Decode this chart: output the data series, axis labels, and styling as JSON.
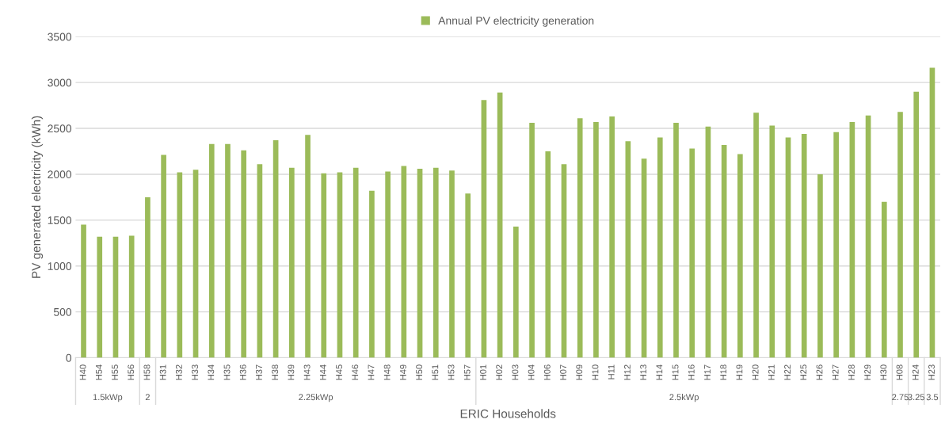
{
  "chart_data": {
    "type": "bar",
    "xlabel": "ERIC Households",
    "ylabel": "PV generated electricity (kWh)",
    "categories": [
      "H40",
      "H54",
      "H55",
      "H56",
      "H58",
      "H31",
      "H32",
      "H33",
      "H34",
      "H35",
      "H36",
      "H37",
      "H38",
      "H39",
      "H43",
      "H44",
      "H45",
      "H46",
      "H47",
      "H48",
      "H49",
      "H50",
      "H51",
      "H53",
      "H57",
      "H01",
      "H02",
      "H03",
      "H04",
      "H06",
      "H07",
      "H09",
      "H10",
      "H11",
      "H12",
      "H13",
      "H14",
      "H15",
      "H16",
      "H17",
      "H18",
      "H19",
      "H20",
      "H21",
      "H22",
      "H25",
      "H26",
      "H27",
      "H28",
      "H29",
      "H30",
      "H08",
      "H24",
      "H23"
    ],
    "series": [
      {
        "name": "Annual PV electricity generation",
        "color": "#9bbb59",
        "values": [
          1450,
          1320,
          1320,
          1330,
          1750,
          2210,
          2020,
          2050,
          2330,
          2330,
          2260,
          2110,
          2370,
          2070,
          2430,
          2010,
          2020,
          2070,
          1820,
          2030,
          2090,
          2060,
          2070,
          2040,
          1790,
          2810,
          2890,
          1430,
          2560,
          2250,
          2110,
          2610,
          2570,
          2630,
          2360,
          2170,
          2400,
          2560,
          2280,
          2520,
          2320,
          2220,
          2670,
          2530,
          2400,
          2440,
          2000,
          2460,
          2570,
          2640,
          1700,
          2680,
          2900,
          3160
        ]
      }
    ],
    "ylim": [
      0,
      3500
    ],
    "yticks": [
      0,
      500,
      1000,
      1500,
      2000,
      2500,
      3000,
      3500
    ],
    "grid": "y",
    "legend": "top",
    "annotations": [
      "1.5kWp",
      "2",
      "2.25kWp",
      "2.5kWp",
      "2.75",
      "3.25",
      "3.5"
    ]
  }
}
